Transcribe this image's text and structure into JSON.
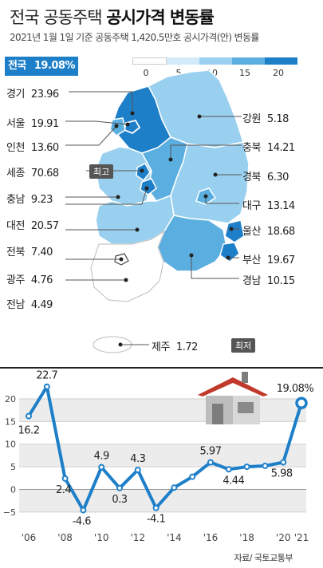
{
  "header": {
    "title_part1": "전국 공동주택",
    "title_part2": "공시가격 변동률",
    "subtitle": "2021년 1월 1일 기준 공동주택 1,420.5만호 공시가격(안) 변동률"
  },
  "national": {
    "label": "전국",
    "value": "19.08%"
  },
  "legend": {
    "ticks": [
      "0",
      "5",
      "10",
      "15",
      "20"
    ],
    "colors": [
      "#ffffff",
      "#d3ebf8",
      "#9ad0ef",
      "#5aaee0",
      "#1e7fc9"
    ]
  },
  "regions": [
    {
      "name": "경기",
      "value": "23.96"
    },
    {
      "name": "서울",
      "value": "19.91"
    },
    {
      "name": "인천",
      "value": "13.60"
    },
    {
      "name": "세종",
      "value": "70.68",
      "badge": "최고"
    },
    {
      "name": "충남",
      "value": "9.23"
    },
    {
      "name": "대전",
      "value": "20.57"
    },
    {
      "name": "전북",
      "value": "7.40"
    },
    {
      "name": "광주",
      "value": "4.76"
    },
    {
      "name": "전남",
      "value": "4.49"
    },
    {
      "name": "강원",
      "value": "5.18"
    },
    {
      "name": "충북",
      "value": "14.21"
    },
    {
      "name": "경북",
      "value": "6.30"
    },
    {
      "name": "대구",
      "value": "13.14"
    },
    {
      "name": "울산",
      "value": "18.68"
    },
    {
      "name": "부산",
      "value": "19.67"
    },
    {
      "name": "경남",
      "value": "10.15"
    },
    {
      "name": "제주",
      "value": "1.72",
      "badge": "최저"
    }
  ],
  "chart_data": {
    "type": "line",
    "x": [
      2006,
      2007,
      2008,
      2009,
      2010,
      2011,
      2012,
      2013,
      2014,
      2015,
      2016,
      2017,
      2018,
      2019,
      2020,
      2021
    ],
    "values": [
      16.2,
      22.7,
      2.4,
      -4.6,
      4.9,
      0.3,
      4.3,
      -4.1,
      0.4,
      2.8,
      5.97,
      4.44,
      5.0,
      5.2,
      5.98,
      19.08
    ],
    "point_labels": [
      "16.2",
      "22.7",
      "2.4",
      "-4.6",
      "4.9",
      "0.3",
      "4.3",
      "-4.1",
      "",
      "",
      "5.97",
      "4.44",
      "",
      "",
      "5.98",
      "19.08%"
    ],
    "x_ticks": [
      "'06",
      "'08",
      "'10",
      "'12",
      "'14",
      "'16",
      "'18",
      "'20",
      "'21"
    ],
    "y_ticks": [
      "20",
      "15",
      "10",
      "5",
      "0",
      "−5"
    ],
    "ylim": [
      -7.5,
      23
    ],
    "line_color": "#1e7fc9",
    "title": "",
    "xlabel": "",
    "ylabel": ""
  },
  "source": "자료/ 국토교통부"
}
